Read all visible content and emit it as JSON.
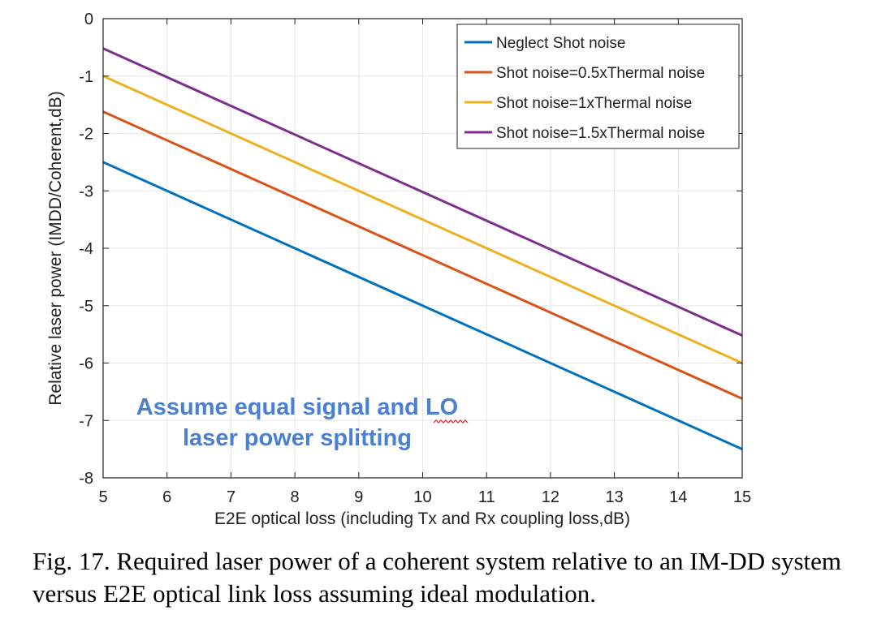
{
  "chart_data": {
    "type": "line",
    "xlabel": "E2E optical loss (including Tx and Rx coupling loss,dB)",
    "ylabel": "Relative laser power (IMDD/Coherent,dB)",
    "xlim": [
      5,
      15
    ],
    "ylim": [
      -8,
      0
    ],
    "xticks": [
      5,
      6,
      7,
      8,
      9,
      10,
      11,
      12,
      13,
      14,
      15
    ],
    "yticks": [
      0,
      -1,
      -2,
      -3,
      -4,
      -5,
      -6,
      -7,
      -8
    ],
    "grid": true,
    "legend_position": "top-right",
    "series": [
      {
        "name": "Neglect Shot noise",
        "color": "#0072BD",
        "x": [
          5,
          15
        ],
        "values": [
          -2.5,
          -7.5
        ]
      },
      {
        "name": "Shot noise=0.5xThermal noise",
        "color": "#D95319",
        "x": [
          5,
          15
        ],
        "values": [
          -1.62,
          -6.62
        ]
      },
      {
        "name": "Shot noise=1xThermal noise",
        "color": "#EDB120",
        "x": [
          5,
          15
        ],
        "values": [
          -1.0,
          -6.0
        ]
      },
      {
        "name": "Shot noise=1.5xThermal noise",
        "color": "#7E2F8E",
        "x": [
          5,
          15
        ],
        "values": [
          -0.52,
          -5.52
        ]
      }
    ],
    "annotation": {
      "line1": "Assume equal signal and LO",
      "line2": "laser power splitting",
      "color": "#4a7fd2"
    }
  },
  "caption": "Fig. 17.  Required laser power of a coherent system relative to an IM-DD system versus E2E optical link loss assuming ideal modulation."
}
